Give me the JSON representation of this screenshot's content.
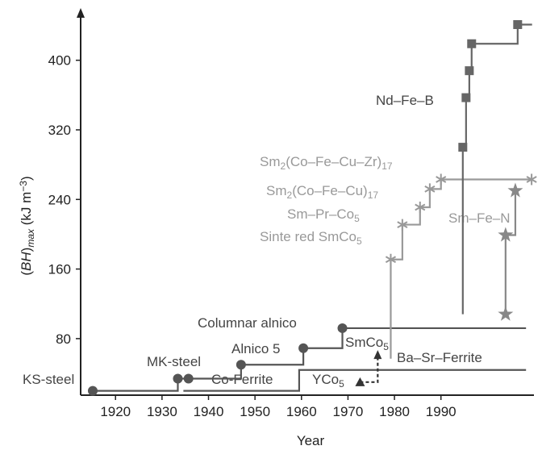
{
  "chart_data": {
    "type": "step",
    "xlabel": "Year",
    "ylabel": [
      {
        "text": "("
      },
      {
        "text": "BH",
        "style": "italic"
      },
      {
        "text": ")"
      },
      {
        "text": "max",
        "style": "sub-italic"
      },
      {
        "text": " (kJ m"
      },
      {
        "text": "−3",
        "style": "sup"
      },
      {
        "text": ")"
      }
    ],
    "xlim": [
      1912.5,
      2010
    ],
    "ylim": [
      15,
      460
    ],
    "xticks": [
      1920,
      1930,
      1940,
      1950,
      1960,
      1970,
      1980,
      1990
    ],
    "yticks": [
      80,
      160,
      240,
      320,
      400
    ],
    "series": [
      {
        "color": "#555555",
        "marker": "circle",
        "x": [
          1915.1,
          1933.4,
          1935.7,
          1947.0,
          1960.4,
          1968.8
        ],
        "values": [
          20,
          34,
          34,
          50,
          69,
          92
        ],
        "extend_to": 2008.3
      },
      {
        "color": "#555555",
        "marker": "none",
        "x": [
          1934.6,
          1959.5
        ],
        "values": [
          20,
          44
        ],
        "extend_to": 2008.3
      },
      {
        "color": "#999999",
        "marker": "asterisk",
        "start_value": 57,
        "x": [
          1979.2,
          1981.7,
          1985.5,
          1987.6,
          1990.0,
          2009.5
        ],
        "values": [
          171,
          211,
          231,
          252,
          263,
          263
        ]
      },
      {
        "color": "#666666",
        "marker": "square",
        "start_value": 108,
        "x": [
          1994.7,
          1995.4,
          1996.1,
          1996.6,
          2006.5
        ],
        "values": [
          300,
          357,
          388,
          419,
          441
        ],
        "extend_to": 2009.6
      },
      {
        "color": "#888888",
        "marker": "star",
        "x": [
          2003.9,
          2003.9,
          2006.0
        ],
        "values": [
          108,
          199,
          250
        ]
      },
      {
        "color": "#333333",
        "marker": "triangle",
        "dashed": true,
        "x": [
          1972.6,
          1976.4
        ],
        "values": [
          30,
          64
        ]
      }
    ],
    "annotations": [
      {
        "color": "#444444",
        "parts": [
          {
            "text": "KS-steel"
          }
        ]
      },
      {
        "color": "#444444",
        "parts": [
          {
            "text": "MK-steel"
          }
        ]
      },
      {
        "color": "#444444",
        "parts": [
          {
            "text": "Co-Ferrite"
          }
        ]
      },
      {
        "color": "#444444",
        "parts": [
          {
            "text": "Alnico 5"
          }
        ]
      },
      {
        "color": "#444444",
        "parts": [
          {
            "text": "Columnar alnico"
          }
        ]
      },
      {
        "color": "#444444",
        "parts": [
          {
            "text": "SmCo"
          },
          {
            "text": "5",
            "style": "sub"
          }
        ]
      },
      {
        "color": "#444444",
        "parts": [
          {
            "text": "Ba–Sr–Ferrite"
          }
        ]
      },
      {
        "color": "#444444",
        "parts": [
          {
            "text": "YCo"
          },
          {
            "text": "5",
            "style": "sub"
          }
        ]
      },
      {
        "color": "#444444",
        "parts": [
          {
            "text": "Nd–Fe–B"
          }
        ]
      },
      {
        "color": "#999999",
        "parts": [
          {
            "text": "Sm"
          },
          {
            "text": "2",
            "style": "sub"
          },
          {
            "text": "(Co–Fe–Cu–Zr)"
          },
          {
            "text": "17",
            "style": "sub"
          }
        ]
      },
      {
        "color": "#999999",
        "parts": [
          {
            "text": "Sm"
          },
          {
            "text": "2",
            "style": "sub"
          },
          {
            "text": "(Co–Fe–Cu)"
          },
          {
            "text": "17",
            "style": "sub"
          }
        ]
      },
      {
        "color": "#999999",
        "parts": [
          {
            "text": "Sm–Pr–Co"
          },
          {
            "text": "5",
            "style": "sub"
          }
        ]
      },
      {
        "color": "#999999",
        "parts": [
          {
            "text": "Sinte red SmCo"
          },
          {
            "text": "5",
            "style": "sub"
          }
        ]
      },
      {
        "color": "#999999",
        "parts": [
          {
            "text": "Sm–Fe–N"
          }
        ]
      }
    ]
  }
}
